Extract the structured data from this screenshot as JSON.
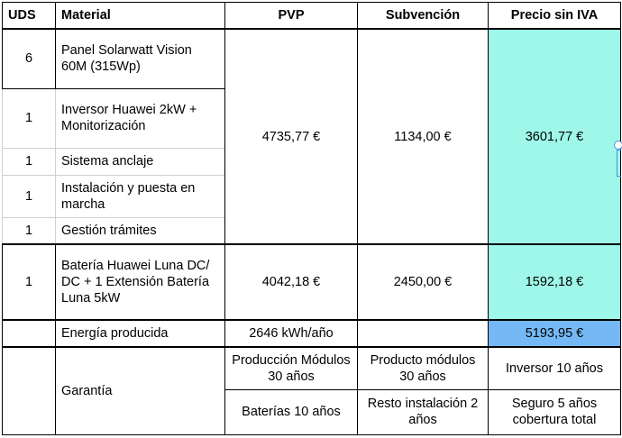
{
  "headers": {
    "uds": "UDS",
    "material": "Material",
    "pvp": "PVP",
    "subvencion": "Subvención",
    "precio": "Precio sin IVA"
  },
  "group1": {
    "rows": [
      {
        "uds": "6",
        "material": "Panel Solarwatt Vision 60M (315Wp)"
      },
      {
        "uds": "1",
        "material": "Inversor Huawei 2kW + Monitorización"
      },
      {
        "uds": "1",
        "material": "Sistema anclaje"
      },
      {
        "uds": "1",
        "material": "Instalación y puesta en marcha"
      },
      {
        "uds": "1",
        "material": "Gestión trámites"
      }
    ],
    "pvp": "4735,77 €",
    "subvencion": "1134,00 €",
    "precio": "3601,77 €"
  },
  "group2": {
    "uds": "1",
    "material": "Batería Huawei Luna DC/ DC + 1 Extensión Batería Luna 5kW",
    "pvp": "4042,18 €",
    "subvencion": "2450,00 €",
    "precio": "1592,18 €"
  },
  "energia": {
    "label": "Energía producida",
    "pvp": "2646 kWh/año",
    "precio": "5193,95 €"
  },
  "garantia": {
    "label": "Garantía",
    "row1": [
      "Producción Módulos 30 años",
      "Producto módulos 30 años",
      "Inversor 10 años"
    ],
    "row2": [
      "Baterías 10 años",
      "Resto instalación 2 años",
      "Seguro 5 años cobertura total"
    ]
  },
  "colors": {
    "teal": "#9ef7e8",
    "blue": "#74b9f5"
  }
}
